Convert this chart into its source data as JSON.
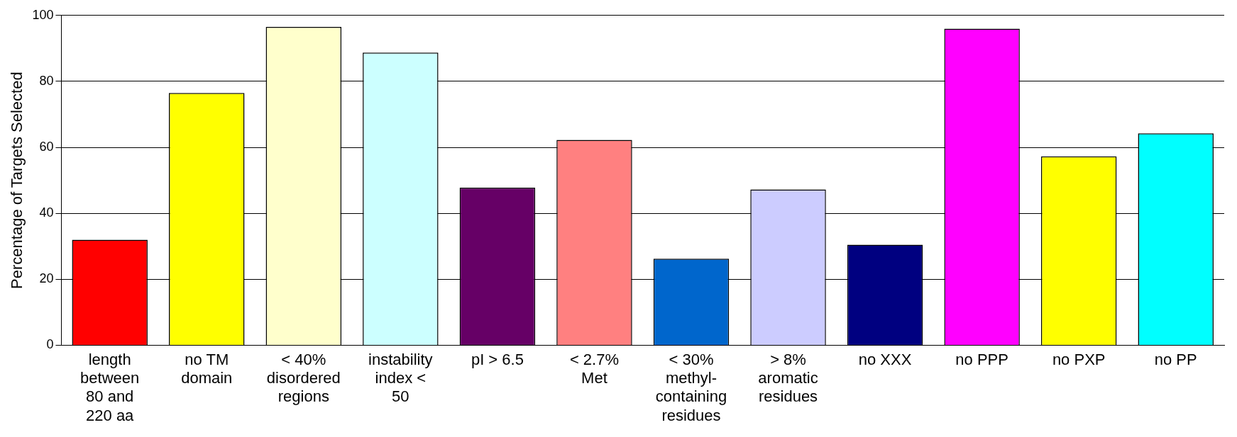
{
  "chart_data": {
    "type": "bar",
    "ylabel": "Percentage of Targets Selected",
    "categories": [
      "length between 80 and 220 aa",
      "no TM domain",
      "< 40% disordered regions",
      "instability index < 50",
      "pI > 6.5",
      "< 2.7% Met",
      "< 30% methyl-containing residues",
      "> 8% aromatic residues",
      "no XXX",
      "no PPP",
      "no PXP",
      "no PP"
    ],
    "values": [
      32,
      76.5,
      96.5,
      88.75,
      47.75,
      62.25,
      26.25,
      47.25,
      30.5,
      96,
      57.25,
      64.25
    ],
    "colors": [
      "#ff0000",
      "#ffff00",
      "#ffffcc",
      "#ccffff",
      "#660066",
      "#ff8080",
      "#0066cc",
      "#ccccff",
      "#000080",
      "#ff00ff",
      "#ffff00",
      "#00ffff"
    ],
    "ylim": [
      0,
      100
    ],
    "yticks": [
      0,
      20,
      40,
      60,
      80,
      100
    ],
    "grid": "y",
    "legend": false
  }
}
